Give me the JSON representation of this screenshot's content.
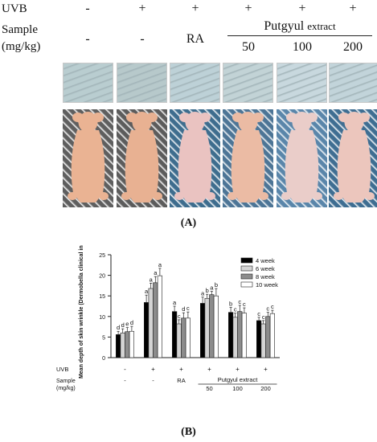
{
  "panel_a": {
    "row_uvb_label": "UVB",
    "row_sample_label_1": "Sample",
    "row_sample_label_2": "(mg/kg)",
    "uvb_values": [
      "-",
      "+",
      "+",
      "+",
      "+",
      "+"
    ],
    "sample_values": [
      "-",
      "-",
      "RA",
      "50",
      "100",
      "200"
    ],
    "extract_label_main": "Putgyul",
    "extract_label_suffix": "extract",
    "caption": "(A)",
    "photo_colors": {
      "skin": [
        "#b9cdd0",
        "#b7c9cb",
        "#bdd1d7",
        "#c2d3d6",
        "#c8d8de",
        "#c2d4da"
      ],
      "mouse": [
        "#eab393",
        "#e8b192",
        "#eac3c1",
        "#ebbba4",
        "#eacdc9",
        "#ecc6bd"
      ],
      "background": [
        "#5f5f5f",
        "#5c5c5c",
        "#3e6d8e",
        "#4d7596",
        "#5a86aa",
        "#3f6e92"
      ]
    }
  },
  "panel_b": {
    "caption": "(B)",
    "uvb_label": "UVB",
    "sample_label_1": "Sample",
    "sample_label_2": "(mg/kg)",
    "extract_label": "Putgyul extract",
    "uvb_values": [
      "-",
      "+",
      "+",
      "+",
      "+",
      "+"
    ],
    "sample_values": [
      "-",
      "-",
      "RA",
      "50",
      "100",
      "200"
    ]
  },
  "chart_data": {
    "type": "bar",
    "title": "",
    "xlabel": "",
    "ylabel": "Mean depth of skin wrinkle (Dermobella clinical index)",
    "ylim": [
      0,
      25
    ],
    "yticks": [
      0,
      5,
      10,
      15,
      20,
      25
    ],
    "legend_position": "top-right",
    "groups": 6,
    "series": [
      {
        "name": "4 week",
        "color": "#000000",
        "values": [
          5.6,
          13.4,
          11.2,
          13.2,
          11.0,
          9.0
        ],
        "errors": [
          0.8,
          1.8,
          1.3,
          1.5,
          1.2,
          0.8
        ],
        "letters": [
          "d",
          "a",
          "a",
          "a",
          "b",
          "c"
        ]
      },
      {
        "name": "6 week",
        "color": "#d4d4d4",
        "values": [
          6.0,
          16.8,
          8.2,
          14.4,
          9.8,
          8.2
        ],
        "errors": [
          1.0,
          1.3,
          1.0,
          1.0,
          1.0,
          0.8
        ],
        "letters": [
          "d",
          "a",
          "c",
          "b",
          "c",
          "c"
        ]
      },
      {
        "name": "8 week",
        "color": "#8c8c8c",
        "values": [
          6.3,
          18.2,
          9.6,
          15.3,
          11.2,
          10.0
        ],
        "errors": [
          1.0,
          1.5,
          1.3,
          0.8,
          1.5,
          1.0
        ],
        "letters": [
          "e",
          "a",
          "d",
          "a",
          "c",
          "c"
        ]
      },
      {
        "name": "10 week",
        "color": "#ffffff",
        "values": [
          6.4,
          19.9,
          9.6,
          15.0,
          10.8,
          10.7
        ],
        "errors": [
          1.2,
          1.8,
          1.5,
          1.8,
          1.3,
          0.8
        ],
        "letters": [
          "d",
          "a",
          "c",
          "b",
          "c",
          "c"
        ]
      }
    ]
  }
}
